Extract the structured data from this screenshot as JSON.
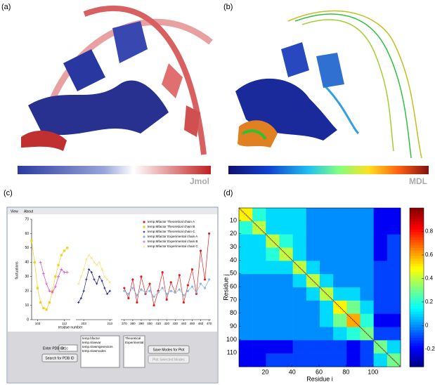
{
  "panels": {
    "a": {
      "label": "(a)",
      "colorbar_label": "Jmol"
    },
    "b": {
      "label": "(b)",
      "colorbar_label": "MDL"
    },
    "c": {
      "label": "(c)",
      "menu": [
        "View",
        "About"
      ],
      "form": {
        "pdb_label": "Enter PDB ID:",
        "pdb_value": "3e1c",
        "search_button": "Search for PDB ID",
        "mode_list": [
          "temp.bfactor",
          "temp.slowvar",
          "temp.slowmgevectors",
          "temp.slowmodes"
        ],
        "type_list": [
          "Theoretical",
          "Experimental"
        ],
        "save_button": "Save Modes for Plot",
        "plot_button": "Plot Selected Modes"
      }
    },
    "d": {
      "label": "(d)"
    }
  },
  "chart_data": [
    {
      "type": "line",
      "xlabel": "residue number",
      "ylabel": "fluctuations",
      "x_segments": [
        [
          101,
          114
        ],
        [
          200,
          214
        ],
        [
          366,
          472
        ]
      ],
      "ylim": [
        0,
        70
      ],
      "yticks": [
        0,
        10,
        20,
        30,
        40,
        50,
        60,
        70
      ],
      "xticks": [
        103,
        112,
        203,
        213,
        370,
        380,
        390,
        400,
        410,
        420,
        430,
        440,
        450,
        460,
        470
      ],
      "series": [
        {
          "name": "temp.Mfactor Theoretical chain A",
          "color": "#e02020",
          "marker": "circle",
          "x": [
            370,
            375,
            380,
            385,
            390,
            395,
            400,
            405,
            410,
            415,
            420,
            425,
            430,
            435,
            440,
            445,
            450,
            455,
            460,
            465,
            470
          ],
          "values": [
            22,
            15,
            28,
            12,
            30,
            18,
            25,
            10,
            20,
            33,
            14,
            26,
            19,
            31,
            12,
            24,
            35,
            18,
            48,
            28,
            60
          ]
        },
        {
          "name": "temp.Mfactor Theoretical chain B",
          "color": "#f0d020",
          "marker": "square",
          "x": [
            101,
            102,
            103,
            104,
            105,
            106,
            107,
            108,
            109,
            110,
            111,
            112,
            113
          ],
          "values": [
            55,
            40,
            22,
            12,
            8,
            7,
            12,
            20,
            30,
            38,
            45,
            48,
            50
          ]
        },
        {
          "name": "temp.Mfactor Theoretical chain C",
          "color": "#202080",
          "marker": "star",
          "x": [
            201,
            202,
            203,
            204,
            205,
            206,
            207,
            208,
            209,
            210,
            211,
            212,
            213
          ],
          "values": [
            12,
            15,
            20,
            28,
            35,
            33,
            28,
            25,
            30,
            27,
            22,
            18,
            20
          ]
        },
        {
          "name": "temp.Mfactor Experimental chain A",
          "color": "#80b8e0",
          "marker": "diamond",
          "x": [
            370,
            375,
            380,
            385,
            390,
            395,
            400,
            405,
            410,
            415,
            420,
            425,
            430,
            435,
            440,
            445,
            450,
            455,
            460,
            465,
            470
          ],
          "values": [
            20,
            18,
            22,
            17,
            21,
            19,
            20,
            16,
            19,
            22,
            18,
            20,
            19,
            21,
            17,
            20,
            23,
            19,
            25,
            22,
            28
          ]
        },
        {
          "name": "temp.Mfactor Experimental chain B",
          "color": "#e040c0",
          "marker": "plus",
          "x": [
            104,
            105,
            106,
            107,
            108,
            109,
            110,
            111,
            112,
            113
          ],
          "values": [
            40,
            32,
            25,
            20,
            19,
            23,
            30,
            35,
            33,
            33
          ]
        },
        {
          "name": "temp.Mfactor Experimental chain C",
          "color": "#f0e080",
          "marker": "cross",
          "x": [
            201,
            202,
            203,
            204,
            205,
            206,
            207,
            208,
            209,
            210,
            211,
            212,
            213
          ],
          "values": [
            25,
            30,
            35,
            42,
            45,
            43,
            40,
            38,
            40,
            35,
            30,
            28,
            26
          ]
        }
      ]
    },
    {
      "type": "heatmap",
      "xlabel": "Residue i",
      "ylabel": "Residue j",
      "xlim": [
        0.5,
        120.5
      ],
      "ylim": [
        0.5,
        120.5
      ],
      "y_reversed": true,
      "xticks": [
        20,
        40,
        60,
        80,
        100
      ],
      "yticks": [
        10,
        20,
        30,
        40,
        50,
        60,
        70,
        80,
        90,
        100,
        110
      ],
      "bins": [
        0.5,
        10.5,
        20.5,
        30.5,
        40.5,
        50.5,
        60.5,
        70.5,
        80.5,
        90.5,
        100.5,
        110.5,
        120.5
      ],
      "clim": [
        -0.35,
        1
      ],
      "cticks": [
        -0.2,
        0,
        0.2,
        0.4,
        0.6,
        0.8
      ],
      "values": [
        [
          0.5,
          0.2,
          0.1,
          0.1,
          0.1,
          0.0,
          0.0,
          0.0,
          0.0,
          0.0,
          -0.2,
          -0.2
        ],
        [
          0.2,
          0.4,
          0.1,
          0.1,
          0.1,
          0.0,
          0.0,
          0.0,
          0.0,
          0.0,
          -0.2,
          -0.2
        ],
        [
          0.1,
          0.1,
          0.4,
          0.2,
          0.1,
          0.0,
          0.0,
          0.0,
          0.0,
          0.0,
          -0.2,
          -0.1
        ],
        [
          0.1,
          0.1,
          0.2,
          0.4,
          0.1,
          0.0,
          0.0,
          0.0,
          0.0,
          0.0,
          -0.2,
          -0.1
        ],
        [
          0.1,
          0.1,
          0.1,
          0.1,
          0.4,
          0.1,
          0.0,
          0.0,
          0.0,
          0.0,
          -0.1,
          -0.1
        ],
        [
          0.0,
          0.0,
          0.0,
          0.0,
          0.1,
          0.4,
          0.1,
          0.0,
          0.0,
          0.0,
          -0.1,
          -0.1
        ],
        [
          0.0,
          0.0,
          0.0,
          0.0,
          0.0,
          0.1,
          0.4,
          0.1,
          0.1,
          0.0,
          -0.1,
          -0.1
        ],
        [
          0.0,
          0.0,
          0.0,
          0.0,
          0.0,
          0.0,
          0.1,
          0.5,
          0.3,
          0.1,
          -0.1,
          -0.1
        ],
        [
          0.0,
          0.0,
          0.0,
          0.0,
          0.0,
          0.0,
          0.1,
          0.3,
          0.6,
          0.2,
          -0.2,
          -0.2
        ],
        [
          0.0,
          0.0,
          0.0,
          0.0,
          0.0,
          0.0,
          0.0,
          0.1,
          0.2,
          0.3,
          -0.1,
          -0.1
        ],
        [
          -0.2,
          -0.2,
          -0.2,
          -0.2,
          -0.1,
          -0.1,
          -0.1,
          -0.1,
          -0.2,
          -0.1,
          0.3,
          0.1
        ],
        [
          -0.2,
          -0.2,
          -0.1,
          -0.1,
          -0.1,
          -0.1,
          -0.1,
          -0.1,
          -0.2,
          -0.1,
          0.1,
          0.3
        ]
      ]
    }
  ]
}
